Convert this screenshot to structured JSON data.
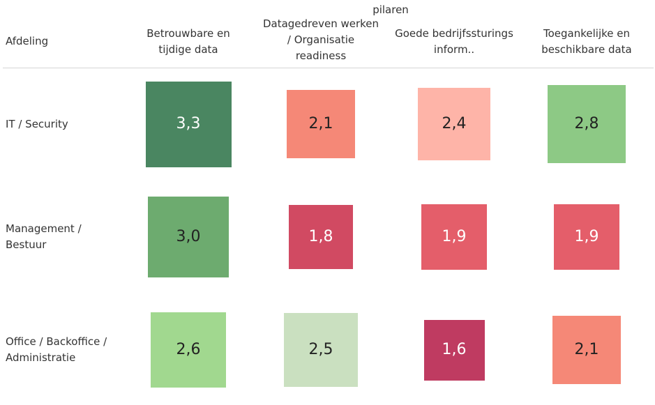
{
  "chart_data": {
    "type": "heatmap",
    "title": "pilaren",
    "row_header": "Afdeling",
    "columns": [
      "Betrouwbare en\ntijdige data",
      "Datagedreven werken\n/ Organisatie\nreadiness",
      "Goede bedrijfssturings\ninform..",
      "Toegankelijke en\nbeschikbare data"
    ],
    "rows": [
      "IT / Security",
      "Management /\nBestuur",
      "Office / Backoffice /\nAdministratie"
    ],
    "values": [
      [
        3.3,
        2.1,
        2.4,
        2.8
      ],
      [
        3.0,
        1.8,
        1.9,
        1.9
      ],
      [
        2.6,
        2.5,
        1.6,
        2.1
      ]
    ],
    "labels": [
      [
        "3,3",
        "2,1",
        "2,4",
        "2,8"
      ],
      [
        "3,0",
        "1,8",
        "1,9",
        "1,9"
      ],
      [
        "2,6",
        "2,5",
        "1,6",
        "2,1"
      ]
    ],
    "colors": [
      [
        "#4a8661",
        "#f58877",
        "#feb4a8",
        "#8dc985"
      ],
      [
        "#6dab6f",
        "#d14a62",
        "#e45e6a",
        "#e45e6a"
      ],
      [
        "#a1d88f",
        "#cae0c0",
        "#bf3b61",
        "#f58877"
      ]
    ],
    "label_colors": [
      [
        "#ffffff",
        "#222222",
        "#222222",
        "#222222"
      ],
      [
        "#222222",
        "#ffffff",
        "#ffffff",
        "#ffffff"
      ],
      [
        "#222222",
        "#222222",
        "#ffffff",
        "#222222"
      ]
    ],
    "encoding": "square size and color by value"
  }
}
